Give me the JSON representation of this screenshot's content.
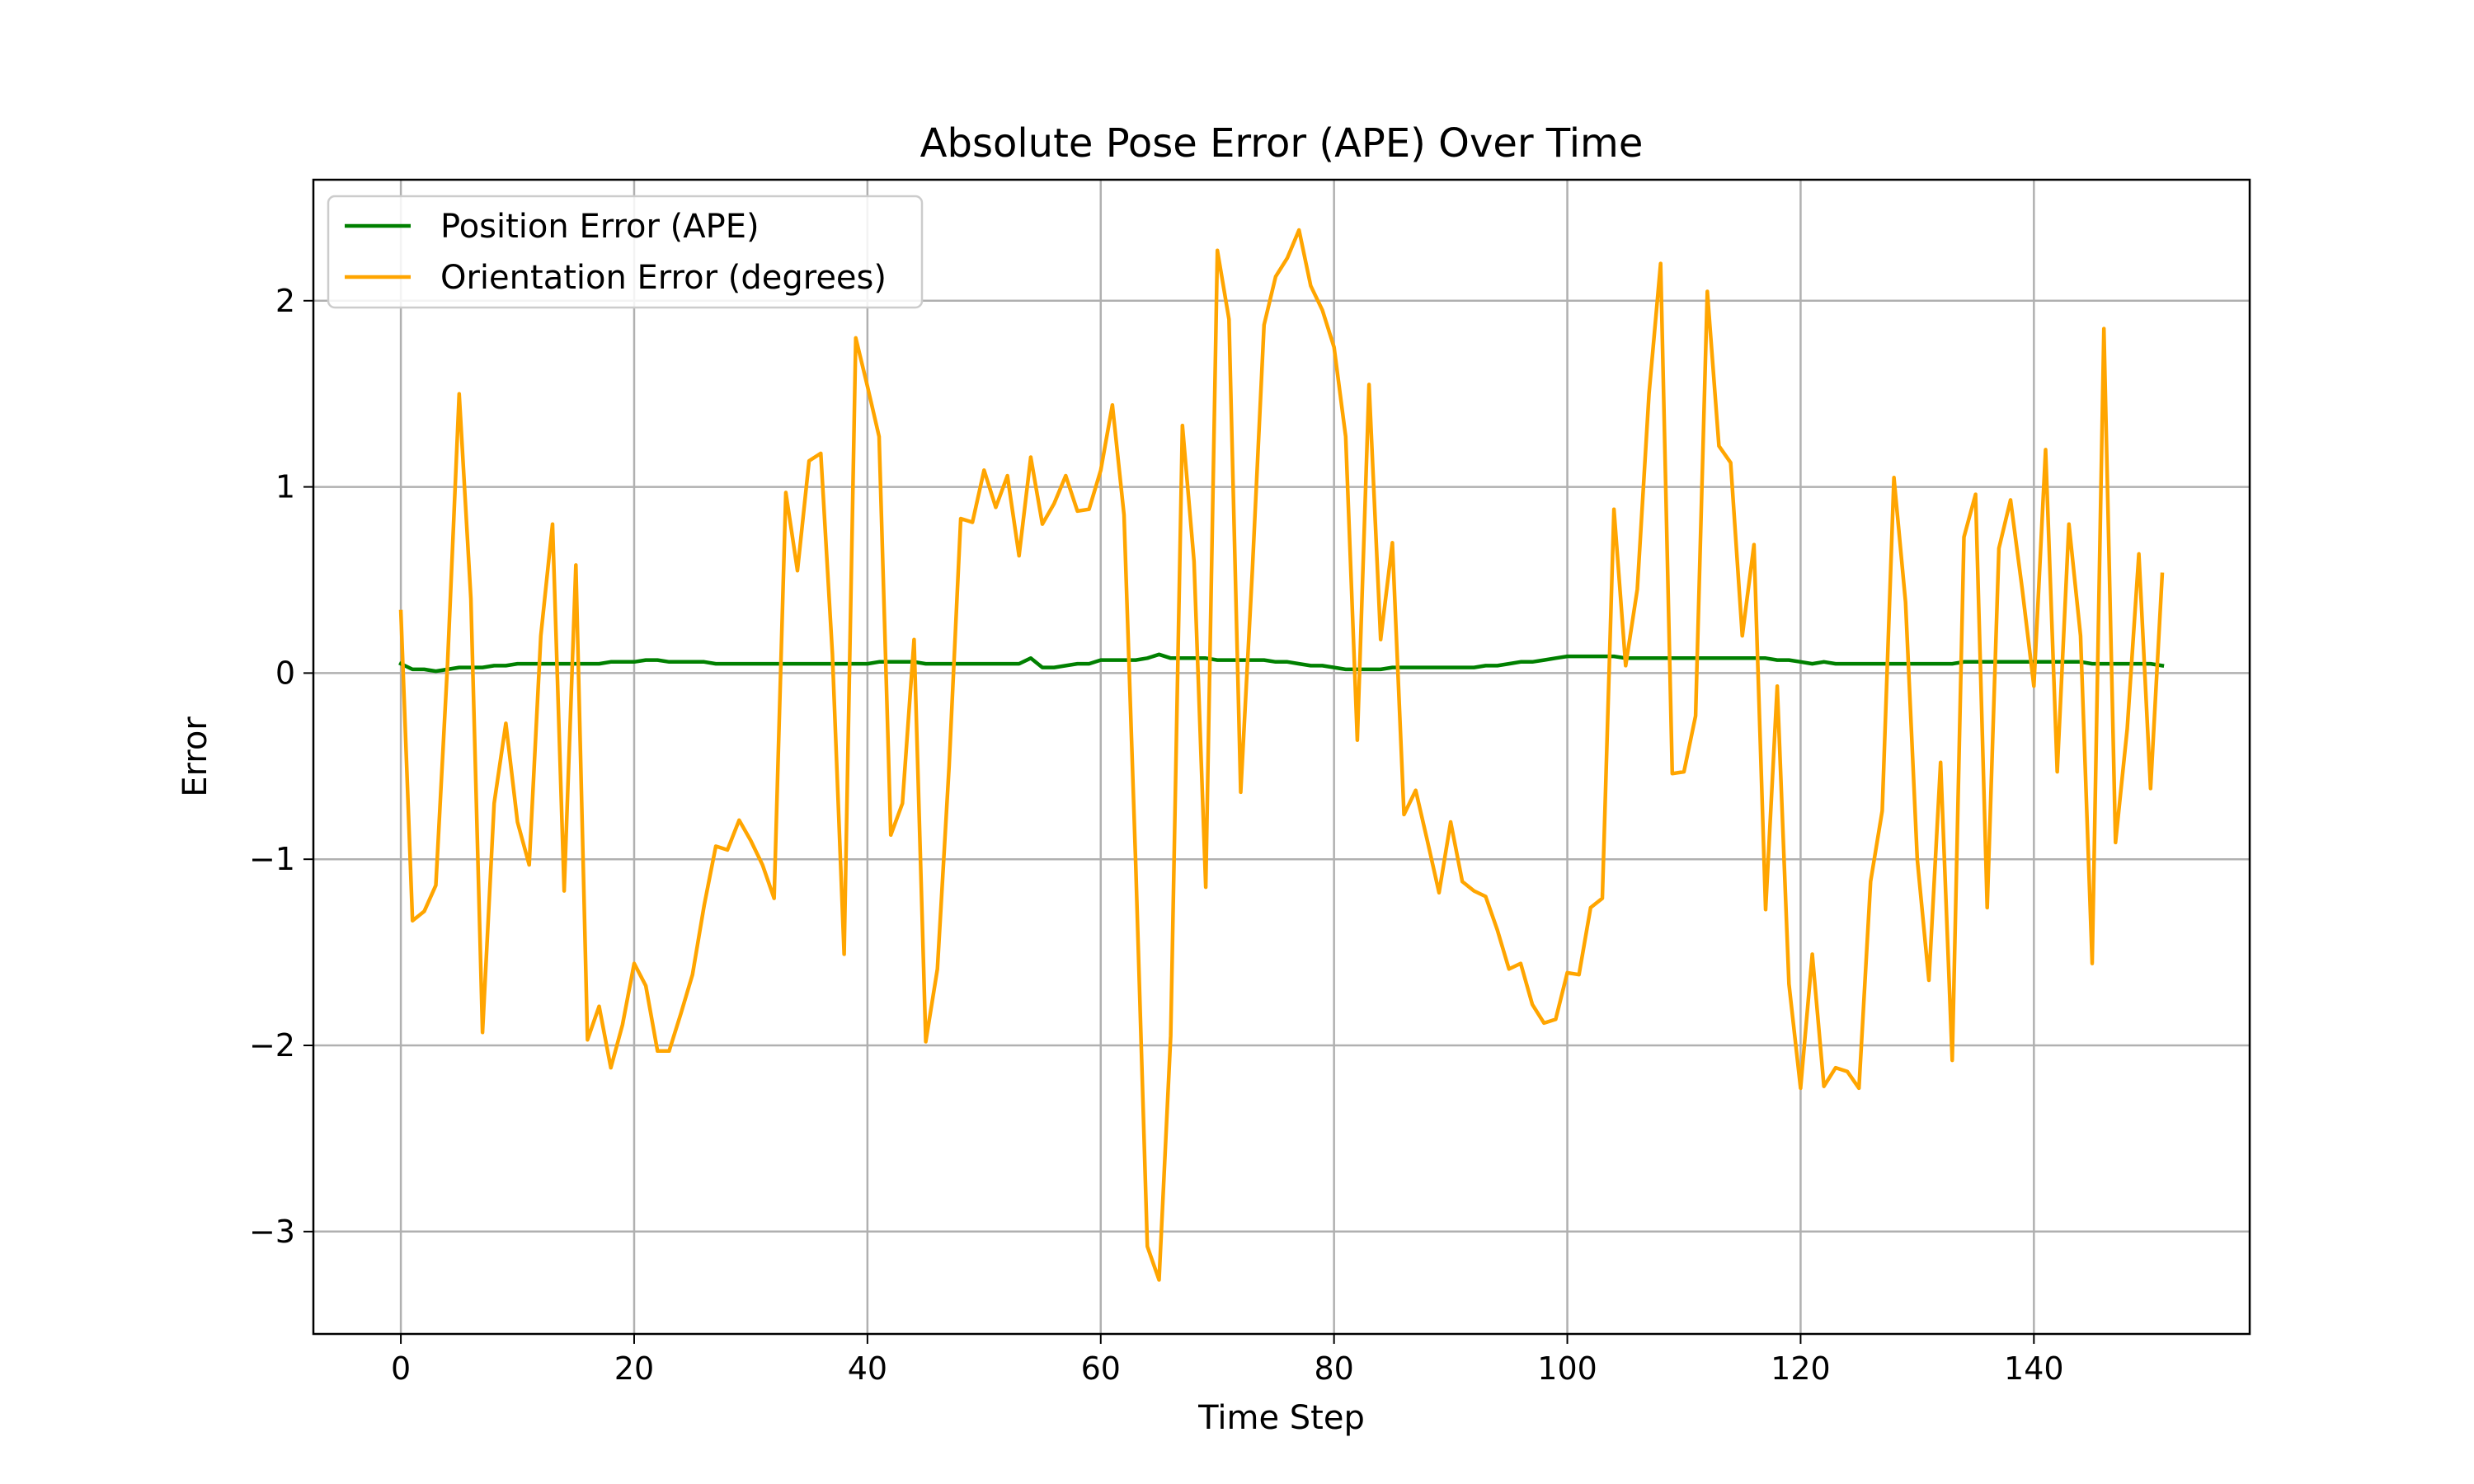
{
  "chart_data": {
    "type": "line",
    "title": "Absolute Pose Error (APE) Over Time",
    "xlabel": "Time Step",
    "ylabel": "Error",
    "xlim": [
      -7.5,
      158.5
    ],
    "ylim": [
      -3.55,
      2.65
    ],
    "x_ticks": [
      0,
      20,
      40,
      60,
      80,
      100,
      120,
      140
    ],
    "y_ticks": [
      -3,
      -2,
      -1,
      0,
      1,
      2
    ],
    "x_tick_labels": [
      "0",
      "20",
      "40",
      "60",
      "80",
      "100",
      "120",
      "140"
    ],
    "y_tick_labels": [
      "−3",
      "−2",
      "−1",
      "0",
      "1",
      "2"
    ],
    "grid": true,
    "legend_position": "top-left",
    "series": [
      {
        "name": "Position Error (APE)",
        "color": "#008000",
        "values": [
          0.05,
          0.02,
          0.02,
          0.01,
          0.02,
          0.03,
          0.03,
          0.03,
          0.04,
          0.04,
          0.05,
          0.05,
          0.05,
          0.05,
          0.05,
          0.05,
          0.05,
          0.05,
          0.06,
          0.06,
          0.06,
          0.07,
          0.07,
          0.06,
          0.06,
          0.06,
          0.06,
          0.05,
          0.05,
          0.05,
          0.05,
          0.05,
          0.05,
          0.05,
          0.05,
          0.05,
          0.05,
          0.05,
          0.05,
          0.05,
          0.05,
          0.06,
          0.06,
          0.06,
          0.06,
          0.05,
          0.05,
          0.05,
          0.05,
          0.05,
          0.05,
          0.05,
          0.05,
          0.05,
          0.08,
          0.03,
          0.03,
          0.04,
          0.05,
          0.05,
          0.07,
          0.07,
          0.07,
          0.07,
          0.08,
          0.1,
          0.08,
          0.08,
          0.08,
          0.08,
          0.07,
          0.07,
          0.07,
          0.07,
          0.07,
          0.06,
          0.06,
          0.05,
          0.04,
          0.04,
          0.03,
          0.02,
          0.02,
          0.02,
          0.02,
          0.03,
          0.03,
          0.03,
          0.03,
          0.03,
          0.03,
          0.03,
          0.03,
          0.04,
          0.04,
          0.05,
          0.06,
          0.06,
          0.07,
          0.08,
          0.09,
          0.09,
          0.09,
          0.09,
          0.09,
          0.08,
          0.08,
          0.08,
          0.08,
          0.08,
          0.08,
          0.08,
          0.08,
          0.08,
          0.08,
          0.08,
          0.08,
          0.08,
          0.07,
          0.07,
          0.06,
          0.05,
          0.06,
          0.05,
          0.05,
          0.05,
          0.05,
          0.05,
          0.05,
          0.05,
          0.05,
          0.05,
          0.05,
          0.05,
          0.06,
          0.06,
          0.06,
          0.06,
          0.06,
          0.06,
          0.06,
          0.06,
          0.06,
          0.06,
          0.06,
          0.05,
          0.05,
          0.05,
          0.05,
          0.05,
          0.05,
          0.04
        ]
      },
      {
        "name": "Orientation Error (degrees)",
        "color": "#FFA500",
        "values": [
          0.33,
          -1.33,
          -1.28,
          -1.14,
          0.05,
          1.5,
          0.4,
          -1.93,
          -0.7,
          -0.27,
          -0.8,
          -1.03,
          0.2,
          0.8,
          -1.17,
          0.58,
          -1.97,
          -1.79,
          -2.12,
          -1.89,
          -1.56,
          -1.68,
          -2.03,
          -2.03,
          -1.83,
          -1.62,
          -1.25,
          -0.93,
          -0.95,
          -0.79,
          -0.9,
          -1.03,
          -1.21,
          0.97,
          0.55,
          1.14,
          1.18,
          0.1,
          -1.51,
          1.8,
          1.54,
          1.27,
          -0.87,
          -0.7,
          0.18,
          -1.98,
          -1.59,
          -0.5,
          0.83,
          0.81,
          1.09,
          0.89,
          1.06,
          0.63,
          1.16,
          0.8,
          0.91,
          1.06,
          0.87,
          0.88,
          1.09,
          1.44,
          0.85,
          -1.03,
          -3.08,
          -3.26,
          -1.95,
          1.33,
          0.6,
          -1.15,
          2.27,
          1.9,
          -0.64,
          0.55,
          1.87,
          2.13,
          2.23,
          2.38,
          2.08,
          1.95,
          1.75,
          1.27,
          -0.36,
          1.55,
          0.18,
          0.7,
          -0.76,
          -0.63,
          -0.9,
          -1.18,
          -0.8,
          -1.12,
          -1.17,
          -1.2,
          -1.38,
          -1.59,
          -1.56,
          -1.78,
          -1.88,
          -1.86,
          -1.61,
          -1.62,
          -1.26,
          -1.21,
          0.88,
          0.04,
          0.45,
          1.5,
          2.2,
          -0.54,
          -0.53,
          -0.23,
          2.05,
          1.22,
          1.13,
          0.2,
          0.69,
          -1.27,
          -0.07,
          -1.67,
          -2.23,
          -1.51,
          -2.22,
          -2.12,
          -2.14,
          -2.23,
          -1.12,
          -0.74,
          1.05,
          0.38,
          -1.0,
          -1.65,
          -0.48,
          -2.08,
          0.73,
          0.96,
          -1.26,
          0.67,
          0.93,
          0.45,
          -0.07,
          1.2,
          -0.53,
          0.8,
          0.2,
          -1.56,
          1.85,
          -0.91,
          -0.3,
          0.64,
          -0.62,
          0.53
        ]
      }
    ]
  }
}
